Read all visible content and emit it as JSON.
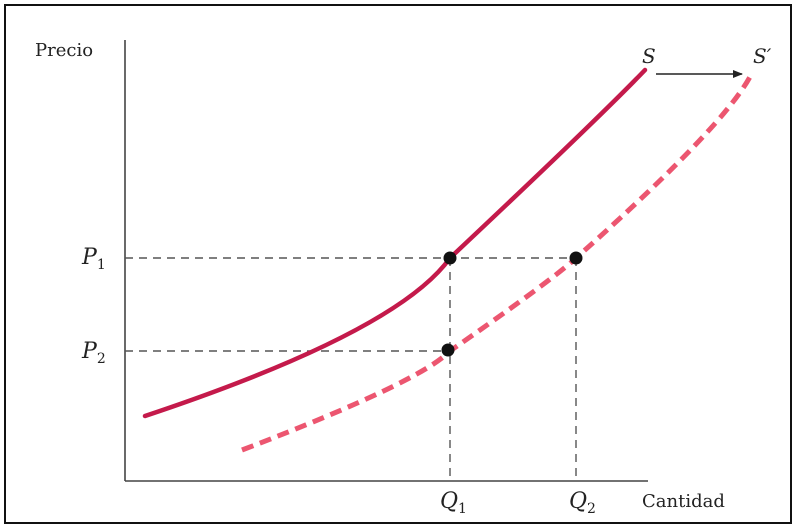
{
  "axes": {
    "y_label": "Precio",
    "x_label": "Cantidad"
  },
  "curves": [
    {
      "id": "S",
      "label": "S",
      "style": "solid",
      "color": "#c41a4b"
    },
    {
      "id": "S_prime",
      "label": "S′",
      "style": "dashed",
      "color": "#ec5670"
    }
  ],
  "price_ticks": [
    {
      "symbol": "P",
      "sub": "1"
    },
    {
      "symbol": "P",
      "sub": "2"
    }
  ],
  "quantity_ticks": [
    {
      "symbol": "Q",
      "sub": "1"
    },
    {
      "symbol": "Q",
      "sub": "2"
    }
  ],
  "shift_arrow": {
    "direction": "right",
    "from": "S",
    "to": "S′"
  },
  "colors": {
    "supply": "#c41a4b",
    "shifted_supply": "#ec5670",
    "axis": "#444444",
    "guide": "#555555",
    "point": "#111111"
  }
}
